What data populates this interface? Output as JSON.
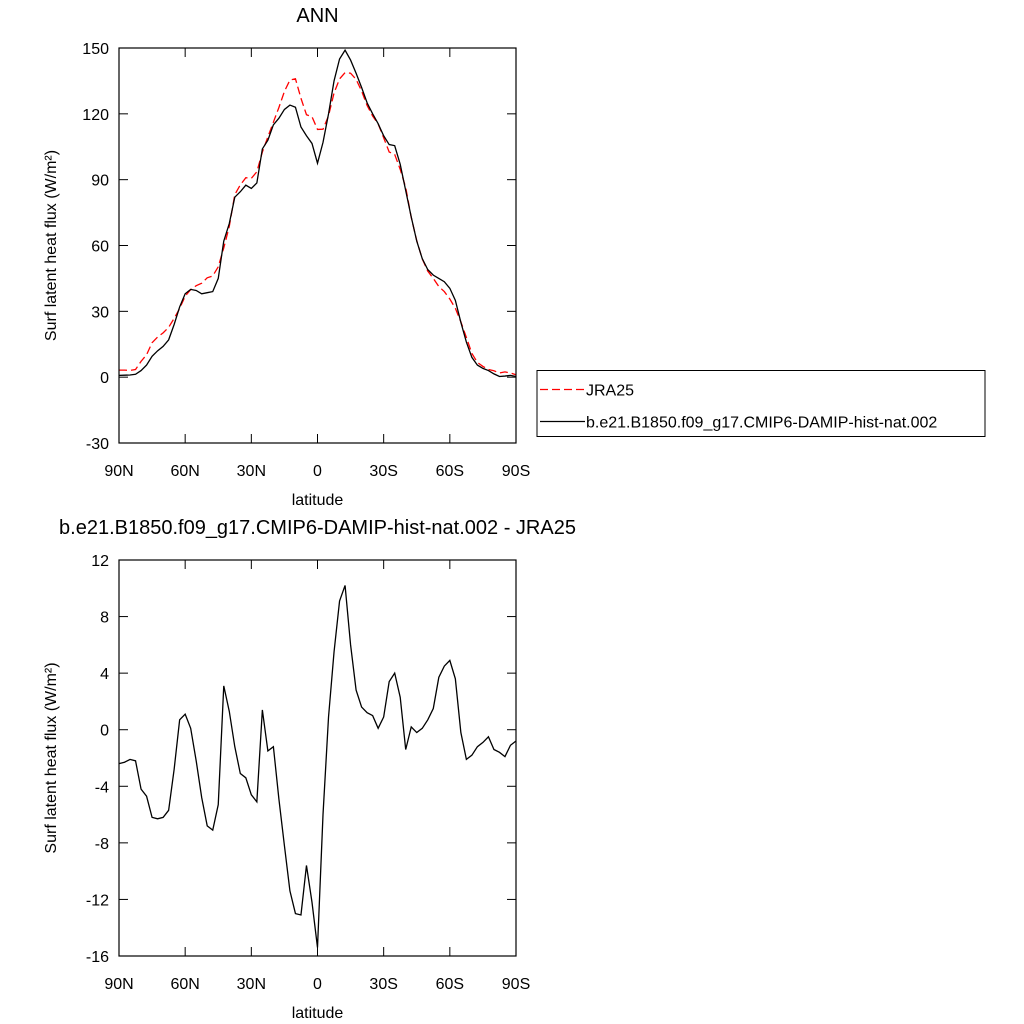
{
  "chart_data": [
    {
      "type": "line",
      "title": "ANN",
      "xlabel": "latitude",
      "ylabel": "Surf latent heat flux (W/m²)",
      "x": [
        90,
        87.5,
        85,
        82.5,
        80,
        77.5,
        75,
        72.5,
        70,
        67.5,
        65,
        62.5,
        60,
        57.5,
        55,
        52.5,
        50,
        47.5,
        45,
        42.5,
        40,
        37.5,
        35,
        32.5,
        30,
        27.5,
        25,
        22.5,
        20,
        17.5,
        15,
        12.5,
        10,
        7.5,
        5,
        2.5,
        0,
        -2.5,
        -5,
        -7.5,
        -10,
        -12.5,
        -15,
        -17.5,
        -20,
        -22.5,
        -25,
        -27.5,
        -30,
        -32.5,
        -35,
        -37.5,
        -40,
        -42.5,
        -45,
        -47.5,
        -50,
        -52.5,
        -55,
        -57.5,
        -60,
        -62.5,
        -65,
        -67.5,
        -70,
        -72.5,
        -75,
        -77.5,
        -80,
        -82.5,
        -85,
        -87.5,
        -90
      ],
      "xlim": [
        90,
        -90
      ],
      "xticks": [
        {
          "value": 90,
          "label": "90N"
        },
        {
          "value": 60,
          "label": "60N"
        },
        {
          "value": 30,
          "label": "30N"
        },
        0,
        {
          "value": -30,
          "label": "30S"
        },
        {
          "value": -60,
          "label": "60S"
        },
        {
          "value": -90,
          "label": "90S"
        }
      ],
      "ylim": [
        -30,
        150
      ],
      "yticks": [
        -30,
        0,
        30,
        60,
        90,
        120,
        150
      ],
      "legend": "right",
      "series": [
        {
          "name": "JRA25",
          "color": "#ff0000",
          "line_style": "dashed",
          "values": [
            3.2,
            3.2,
            3.1,
            3.5,
            7.2,
            10.2,
            15.7,
            18.3,
            20.2,
            22.7,
            26.8,
            31.3,
            36.9,
            39.9,
            41.7,
            42.8,
            45.3,
            46.1,
            50.3,
            58.9,
            68.7,
            83.2,
            87.6,
            90.9,
            90.6,
            93.6,
            102.6,
            109.5,
            116.2,
            122.9,
            130.2,
            135.4,
            136.0,
            127.1,
            119.6,
            118.7,
            112.9,
            113.0,
            119.1,
            129.5,
            135.9,
            138.8,
            138.5,
            135.7,
            130.4,
            123.8,
            119.0,
            115.4,
            109.1,
            102.6,
            101.5,
            94.7,
            86.4,
            72.8,
            62.2,
            53.9,
            48.3,
            45.0,
            41.3,
            39.0,
            35.6,
            31.4,
            25.2,
            18.1,
            10.8,
            6.7,
            4.9,
            3.5,
            2.9,
            1.9,
            2.4,
            1.9,
            1.1
          ]
        },
        {
          "name": "b.e21.B1850.f09_g17.CMIP6-DAMIP-hist-nat.002",
          "color": "#000000",
          "line_style": "solid",
          "values": [
            0.8,
            0.9,
            1.0,
            1.3,
            3.0,
            5.5,
            9.5,
            12.0,
            14.0,
            17.0,
            24.0,
            32.0,
            38.0,
            40.0,
            39.5,
            38.0,
            38.5,
            39.0,
            45.0,
            62.0,
            70.0,
            82.0,
            84.5,
            87.5,
            86.0,
            88.5,
            104.0,
            108.0,
            115.0,
            118.0,
            122.0,
            124.0,
            123.0,
            114.0,
            110.0,
            106.5,
            97.5,
            107.0,
            120.0,
            135.0,
            145.0,
            149.0,
            144.5,
            138.5,
            132.0,
            125.0,
            120.0,
            115.5,
            110.0,
            106.0,
            105.5,
            97.0,
            85.0,
            73.0,
            62.0,
            54.0,
            49.0,
            46.5,
            45.0,
            43.5,
            40.5,
            35.0,
            25.0,
            16.0,
            9.0,
            5.5,
            4.0,
            3.0,
            1.5,
            0.3,
            0.5,
            0.8,
            0.3
          ]
        }
      ]
    },
    {
      "type": "line",
      "title": "b.e21.B1850.f09_g17.CMIP6-DAMIP-hist-nat.002 - JRA25",
      "xlabel": "latitude",
      "ylabel": "Surf latent heat flux (W/m²)",
      "x": [
        90,
        87.5,
        85,
        82.5,
        80,
        77.5,
        75,
        72.5,
        70,
        67.5,
        65,
        62.5,
        60,
        57.5,
        55,
        52.5,
        50,
        47.5,
        45,
        42.5,
        40,
        37.5,
        35,
        32.5,
        30,
        27.5,
        25,
        22.5,
        20,
        17.5,
        15,
        12.5,
        10,
        7.5,
        5,
        2.5,
        0,
        -2.5,
        -5,
        -7.5,
        -10,
        -12.5,
        -15,
        -17.5,
        -20,
        -22.5,
        -25,
        -27.5,
        -30,
        -32.5,
        -35,
        -37.5,
        -40,
        -42.5,
        -45,
        -47.5,
        -50,
        -52.5,
        -55,
        -57.5,
        -60,
        -62.5,
        -65,
        -67.5,
        -70,
        -72.5,
        -75,
        -77.5,
        -80,
        -82.5,
        -85,
        -87.5,
        -90
      ],
      "xlim": [
        90,
        -90
      ],
      "xticks": [
        {
          "value": 90,
          "label": "90N"
        },
        {
          "value": 60,
          "label": "60N"
        },
        {
          "value": 30,
          "label": "30N"
        },
        0,
        {
          "value": -30,
          "label": "30S"
        },
        {
          "value": -60,
          "label": "60S"
        },
        {
          "value": -90,
          "label": "90S"
        }
      ],
      "ylim": [
        -16,
        12
      ],
      "yticks": [
        -16,
        -12,
        -8,
        -4,
        0,
        4,
        8,
        12
      ],
      "color": "#000000",
      "values": [
        -2.4,
        -2.3,
        -2.1,
        -2.2,
        -4.2,
        -4.7,
        -6.2,
        -6.3,
        -6.2,
        -5.7,
        -2.8,
        0.7,
        1.1,
        0.1,
        -2.2,
        -4.8,
        -6.8,
        -7.1,
        -5.3,
        3.1,
        1.3,
        -1.2,
        -3.1,
        -3.4,
        -4.6,
        -5.1,
        1.4,
        -1.5,
        -1.2,
        -4.9,
        -8.2,
        -11.4,
        -13.0,
        -13.1,
        -9.6,
        -12.2,
        -15.4,
        -6.0,
        0.9,
        5.5,
        9.1,
        10.2,
        6.0,
        2.8,
        1.6,
        1.2,
        1.0,
        0.1,
        0.9,
        3.4,
        4.0,
        2.3,
        -1.4,
        0.2,
        -0.2,
        0.1,
        0.7,
        1.5,
        3.7,
        4.5,
        4.9,
        3.6,
        -0.2,
        -2.1,
        -1.8,
        -1.2,
        -0.9,
        -0.5,
        -1.4,
        -1.6,
        -1.9,
        -1.1,
        -0.8
      ]
    }
  ]
}
